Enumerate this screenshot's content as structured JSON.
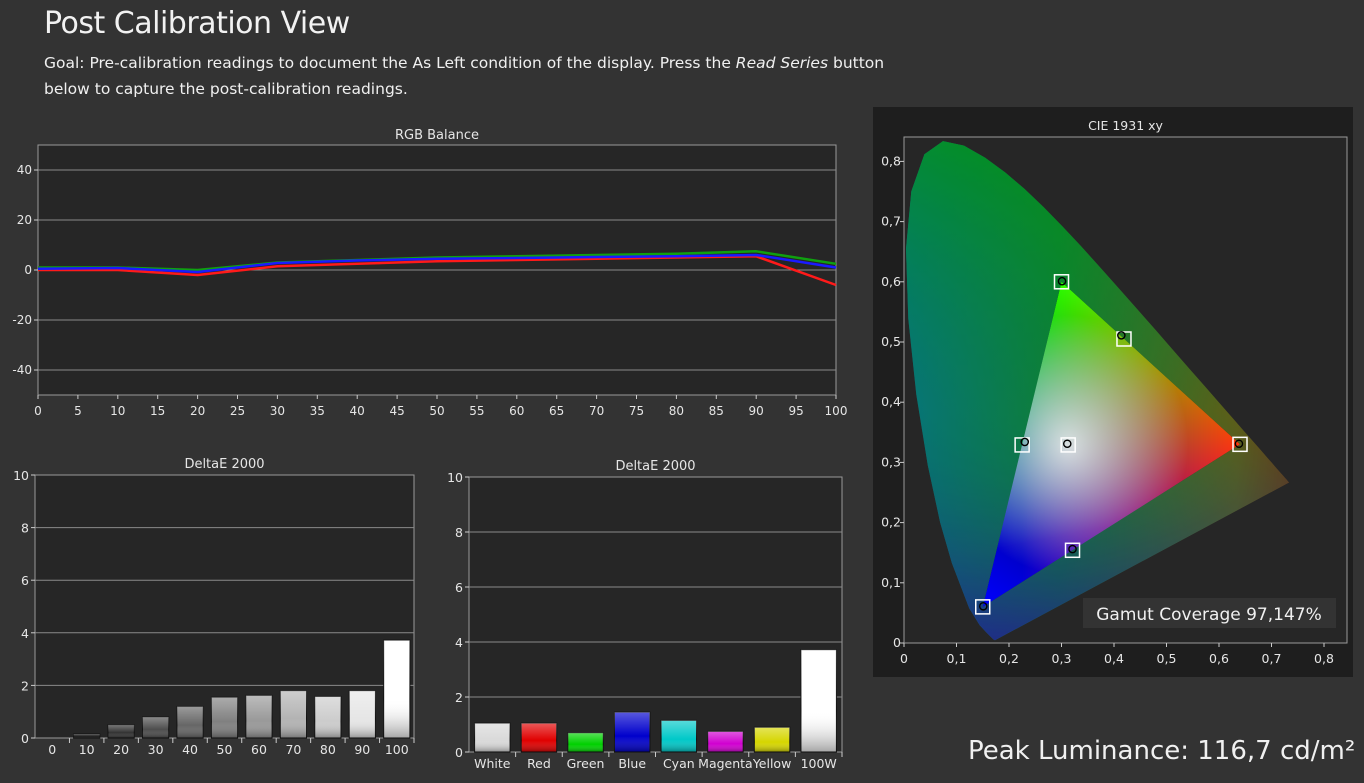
{
  "page": {
    "title": "Post Calibration View",
    "goal_pre": "Goal: Pre-calibration readings to document the As Left condition of the display. Press the ",
    "goal_em": "Read Series",
    "goal_post": " button below to capture the post-calibration readings.",
    "peak_label": "Peak Luminance:",
    "peak_value": "116,7 cd/m²"
  },
  "colors": {
    "background": "#333333",
    "plot_bg": "#262626",
    "grid": "#8a8a8a",
    "red": "#ff1a1a",
    "green": "#0fa00f",
    "blue": "#1a1aff"
  },
  "chart_data": [
    {
      "id": "rgb_balance",
      "type": "line",
      "title": "RGB Balance",
      "x": [
        0,
        10,
        20,
        30,
        40,
        50,
        60,
        70,
        80,
        90,
        100
      ],
      "xticks": [
        0,
        5,
        10,
        15,
        20,
        25,
        30,
        35,
        40,
        45,
        50,
        55,
        60,
        65,
        70,
        75,
        80,
        85,
        90,
        95,
        100
      ],
      "ylim": [
        -50,
        50
      ],
      "yticks": [
        -40,
        -20,
        0,
        20,
        40
      ],
      "grid": true,
      "series": [
        {
          "color": "#ff1a1a",
          "values": [
            0,
            0,
            -2,
            1.5,
            2.5,
            3.5,
            4,
            4.5,
            5,
            5.5,
            -6
          ]
        },
        {
          "color": "#0fa00f",
          "values": [
            1,
            1,
            0,
            3,
            4,
            5,
            5.5,
            6,
            6.5,
            7.5,
            2.5
          ]
        },
        {
          "color": "#1a1aff",
          "values": [
            0.5,
            0.8,
            -0.8,
            2.8,
            3.8,
            4.5,
            4.8,
            5.2,
            5.5,
            6,
            1
          ]
        }
      ]
    },
    {
      "id": "deltae_gray",
      "type": "bar",
      "title": "DeltaE 2000",
      "categories": [
        "0",
        "10",
        "20",
        "30",
        "40",
        "50",
        "60",
        "70",
        "80",
        "90",
        "100"
      ],
      "values": [
        0,
        0.15,
        0.5,
        0.8,
        1.2,
        1.55,
        1.62,
        1.8,
        1.58,
        1.8,
        3.72
      ],
      "fills": [
        "#000000",
        "#1a1a1a",
        "#333333",
        "#4d4d4d",
        "#666666",
        "#808080",
        "#999999",
        "#b3b3b3",
        "#cccccc",
        "#e6e6e6",
        "#ffffff"
      ],
      "ylim": [
        0,
        10
      ],
      "yticks": [
        0,
        2,
        4,
        6,
        8,
        10
      ],
      "grid": true
    },
    {
      "id": "deltae_colors",
      "type": "bar",
      "title": "DeltaE 2000",
      "categories": [
        "White",
        "Red",
        "Green",
        "Blue",
        "Cyan",
        "Magenta",
        "Yellow",
        "100W"
      ],
      "values": [
        1.05,
        1.05,
        0.7,
        1.45,
        1.15,
        0.75,
        0.9,
        3.72
      ],
      "fills": [
        "#d9d9d9",
        "#e00000",
        "#00d000",
        "#0000cc",
        "#00c8c8",
        "#d000d0",
        "#d6d600",
        "#ffffff"
      ],
      "ylim": [
        0,
        10
      ],
      "yticks": [
        0,
        2,
        4,
        6,
        8,
        10
      ],
      "grid": true
    },
    {
      "id": "cie1931",
      "type": "scatter",
      "title": "CIE 1931 xy",
      "xlim": [
        0,
        0.8
      ],
      "ylim": [
        0,
        0.8
      ],
      "xticks": [
        "0",
        "0,1",
        "0,2",
        "0,3",
        "0,4",
        "0,5",
        "0,6",
        "0,7",
        "0,8"
      ],
      "yticks": [
        "0",
        "0,1",
        "0,2",
        "0,3",
        "0,4",
        "0,5",
        "0,6",
        "0,7",
        "0,8"
      ],
      "gamut_triangle": [
        [
          0.64,
          0.33
        ],
        [
          0.3,
          0.6
        ],
        [
          0.15,
          0.06
        ]
      ],
      "targets": [
        {
          "name": "Red",
          "x": 0.64,
          "y": 0.33
        },
        {
          "name": "Green",
          "x": 0.3,
          "y": 0.6
        },
        {
          "name": "Blue",
          "x": 0.15,
          "y": 0.06
        },
        {
          "name": "Cyan",
          "x": 0.225,
          "y": 0.329
        },
        {
          "name": "Magenta",
          "x": 0.321,
          "y": 0.154
        },
        {
          "name": "Yellow",
          "x": 0.419,
          "y": 0.505
        },
        {
          "name": "White",
          "x": 0.3127,
          "y": 0.329
        }
      ],
      "measured": [
        {
          "name": "Red",
          "x": 0.638,
          "y": 0.331
        },
        {
          "name": "Green",
          "x": 0.301,
          "y": 0.601
        },
        {
          "name": "Blue",
          "x": 0.151,
          "y": 0.061
        },
        {
          "name": "Cyan",
          "x": 0.23,
          "y": 0.334
        },
        {
          "name": "Magenta",
          "x": 0.321,
          "y": 0.156
        },
        {
          "name": "Yellow",
          "x": 0.414,
          "y": 0.511
        },
        {
          "name": "White",
          "x": 0.311,
          "y": 0.331
        }
      ],
      "annotation": "Gamut Coverage 97,147%"
    }
  ]
}
